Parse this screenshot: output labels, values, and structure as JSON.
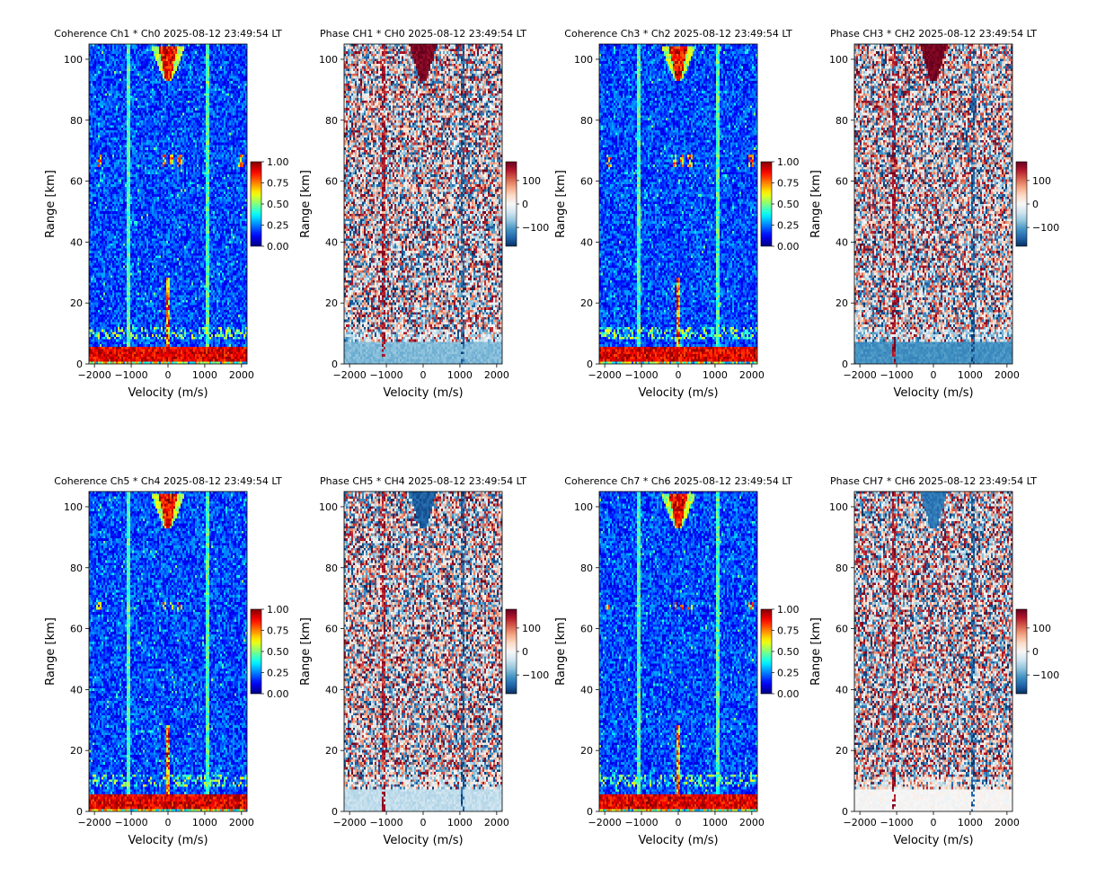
{
  "chart_data": [
    {
      "type": "heatmap",
      "kind": "coherence",
      "title": "Coherence Ch1 * Ch0 2025-08-12 23:49:54 LT",
      "xlabel": "Velocity (m/s)",
      "ylabel": "Range [km]",
      "xlim": [
        -2150,
        2150
      ],
      "ylim": [
        0,
        105
      ],
      "xticks": [
        -2000,
        -1000,
        0,
        1000,
        2000
      ],
      "xtick_labels": [
        "−2000",
        "−1000",
        "0",
        "1000",
        "2000"
      ],
      "yticks": [
        0,
        20,
        40,
        60,
        80,
        100
      ],
      "colormap": "jet",
      "clim": [
        0,
        1
      ],
      "cbar_ticks": [
        "0.00",
        "0.25",
        "0.50",
        "0.75",
        "1.00"
      ],
      "cbar_tick_values": [
        0,
        0.25,
        0.5,
        0.75,
        1.0
      ],
      "features": {
        "low_range_band_km": [
          1,
          6
        ],
        "cusp_velocity": 0,
        "cusp_range_km": [
          93,
          104
        ],
        "streak_velocities": [
          -1080,
          1080
        ],
        "patch_range_km": [
          65,
          69
        ],
        "patch_velocities": [
          -1900,
          -100,
          100,
          300,
          2000
        ]
      }
    },
    {
      "type": "heatmap",
      "kind": "phase",
      "title": "Phase CH1 * CH0 2025-08-12 23:49:54 LT",
      "xlabel": "Velocity (m/s)",
      "ylabel": "Range [km]",
      "xlim": [
        -2150,
        2150
      ],
      "ylim": [
        0,
        105
      ],
      "xticks": [
        -2000,
        -1000,
        0,
        1000,
        2000
      ],
      "xtick_labels": [
        "−2000",
        "−1000",
        "0",
        "1000",
        "2000"
      ],
      "yticks": [
        0,
        20,
        40,
        60,
        80,
        100
      ],
      "colormap": "RdBu_r",
      "clim": [
        -180,
        180
      ],
      "cbar_ticks": [
        "100",
        "0",
        "−100"
      ],
      "cbar_tick_values": [
        100,
        0,
        -100
      ],
      "features": {
        "low_range_phase_deg": -80,
        "cusp_phase_deg": 170,
        "streak_velocities": [
          -1080,
          1080
        ]
      }
    },
    {
      "type": "heatmap",
      "kind": "coherence",
      "title": "Coherence Ch3 * Ch2 2025-08-12 23:49:54 LT",
      "xlabel": "Velocity (m/s)",
      "ylabel": "Range [km]",
      "xlim": [
        -2150,
        2150
      ],
      "ylim": [
        0,
        105
      ],
      "xticks": [
        -2000,
        -1000,
        0,
        1000,
        2000
      ],
      "xtick_labels": [
        "−2000",
        "−1000",
        "0",
        "1000",
        "2000"
      ],
      "yticks": [
        0,
        20,
        40,
        60,
        80,
        100
      ],
      "colormap": "jet",
      "clim": [
        0,
        1
      ],
      "cbar_ticks": [
        "0.00",
        "0.25",
        "0.50",
        "0.75",
        "1.00"
      ],
      "cbar_tick_values": [
        0,
        0.25,
        0.5,
        0.75,
        1.0
      ],
      "features": {
        "low_range_band_km": [
          1,
          6
        ],
        "cusp_velocity": 0,
        "cusp_range_km": [
          93,
          104
        ],
        "streak_velocities": [
          -1080,
          1080
        ],
        "patch_range_km": [
          65,
          69
        ],
        "patch_velocities": [
          -1900,
          -100,
          100,
          300,
          2000
        ]
      }
    },
    {
      "type": "heatmap",
      "kind": "phase",
      "title": "Phase CH3 * CH2 2025-08-12 23:49:54 LT",
      "xlabel": "Velocity (m/s)",
      "ylabel": "Range [km]",
      "xlim": [
        -2150,
        2150
      ],
      "ylim": [
        0,
        105
      ],
      "xticks": [
        -2000,
        -1000,
        0,
        1000,
        2000
      ],
      "xtick_labels": [
        "−2000",
        "−1000",
        "0",
        "1000",
        "2000"
      ],
      "yticks": [
        0,
        20,
        40,
        60,
        80,
        100
      ],
      "colormap": "RdBu_r",
      "clim": [
        -180,
        180
      ],
      "cbar_ticks": [
        "100",
        "0",
        "−100"
      ],
      "cbar_tick_values": [
        100,
        0,
        -100
      ],
      "features": {
        "low_range_phase_deg": -110,
        "cusp_phase_deg": 175,
        "streak_velocities": [
          -1080,
          1080
        ]
      }
    },
    {
      "type": "heatmap",
      "kind": "coherence",
      "title": "Coherence Ch5 * Ch4 2025-08-12 23:49:54 LT",
      "xlabel": "Velocity (m/s)",
      "ylabel": "Range [km]",
      "xlim": [
        -2150,
        2150
      ],
      "ylim": [
        0,
        105
      ],
      "xticks": [
        -2000,
        -1000,
        0,
        1000,
        2000
      ],
      "xtick_labels": [
        "−2000",
        "−1000",
        "0",
        "1000",
        "2000"
      ],
      "yticks": [
        0,
        20,
        40,
        60,
        80,
        100
      ],
      "colormap": "jet",
      "clim": [
        0,
        1
      ],
      "cbar_ticks": [
        "0.00",
        "0.25",
        "0.50",
        "0.75",
        "1.00"
      ],
      "cbar_tick_values": [
        0,
        0.25,
        0.5,
        0.75,
        1.0
      ],
      "features": {
        "low_range_band_km": [
          1,
          6
        ],
        "cusp_velocity": 0,
        "cusp_range_km": [
          93,
          104
        ],
        "streak_velocities": [
          -1080,
          1080
        ],
        "patch_range_km": [
          66,
          69
        ],
        "patch_velocities": [
          -1900,
          -100,
          100,
          300
        ]
      }
    },
    {
      "type": "heatmap",
      "kind": "phase",
      "title": "Phase CH5 * CH4 2025-08-12 23:49:54 LT",
      "xlabel": "Velocity (m/s)",
      "ylabel": "Range [km]",
      "xlim": [
        -2150,
        2150
      ],
      "ylim": [
        0,
        105
      ],
      "xticks": [
        -2000,
        -1000,
        0,
        1000,
        2000
      ],
      "xtick_labels": [
        "−2000",
        "−1000",
        "0",
        "1000",
        "2000"
      ],
      "yticks": [
        0,
        20,
        40,
        60,
        80,
        100
      ],
      "colormap": "RdBu_r",
      "clim": [
        -180,
        180
      ],
      "cbar_ticks": [
        "100",
        "0",
        "−100"
      ],
      "cbar_tick_values": [
        100,
        0,
        -100
      ],
      "features": {
        "low_range_phase_deg": -45,
        "cusp_phase_deg": -150,
        "streak_velocities": [
          -1080,
          1080
        ]
      }
    },
    {
      "type": "heatmap",
      "kind": "coherence",
      "title": "Coherence Ch7 * Ch6 2025-08-12 23:49:54 LT",
      "xlabel": "Velocity (m/s)",
      "ylabel": "Range [km]",
      "xlim": [
        -2150,
        2150
      ],
      "ylim": [
        0,
        105
      ],
      "xticks": [
        -2000,
        -1000,
        0,
        1000,
        2000
      ],
      "xtick_labels": [
        "−2000",
        "−1000",
        "0",
        "1000",
        "2000"
      ],
      "yticks": [
        0,
        20,
        40,
        60,
        80,
        100
      ],
      "colormap": "jet",
      "clim": [
        0,
        1
      ],
      "cbar_ticks": [
        "0.00",
        "0.25",
        "0.50",
        "0.75",
        "1.00"
      ],
      "cbar_tick_values": [
        0,
        0.25,
        0.5,
        0.75,
        1.0
      ],
      "features": {
        "low_range_band_km": [
          1,
          6
        ],
        "cusp_velocity": 0,
        "cusp_range_km": [
          93,
          104
        ],
        "streak_velocities": [
          -1080,
          1080
        ],
        "patch_range_km": [
          66,
          69
        ],
        "patch_velocities": [
          -1900,
          -100,
          100,
          300,
          2000
        ]
      }
    },
    {
      "type": "heatmap",
      "kind": "phase",
      "title": "Phase CH7 * CH6 2025-08-12 23:49:54 LT",
      "xlabel": "Velocity (m/s)",
      "ylabel": "Range [km]",
      "xlim": [
        -2150,
        2150
      ],
      "ylim": [
        0,
        105
      ],
      "xticks": [
        -2000,
        -1000,
        0,
        1000,
        2000
      ],
      "xtick_labels": [
        "−2000",
        "−1000",
        "0",
        "1000",
        "2000"
      ],
      "yticks": [
        0,
        20,
        40,
        60,
        80,
        100
      ],
      "colormap": "RdBu_r",
      "clim": [
        -180,
        180
      ],
      "cbar_ticks": [
        "100",
        "0",
        "−100"
      ],
      "cbar_tick_values": [
        100,
        0,
        -100
      ],
      "features": {
        "low_range_phase_deg": 0,
        "cusp_phase_deg": -130,
        "streak_velocities": [
          -1080,
          1080
        ]
      }
    }
  ]
}
